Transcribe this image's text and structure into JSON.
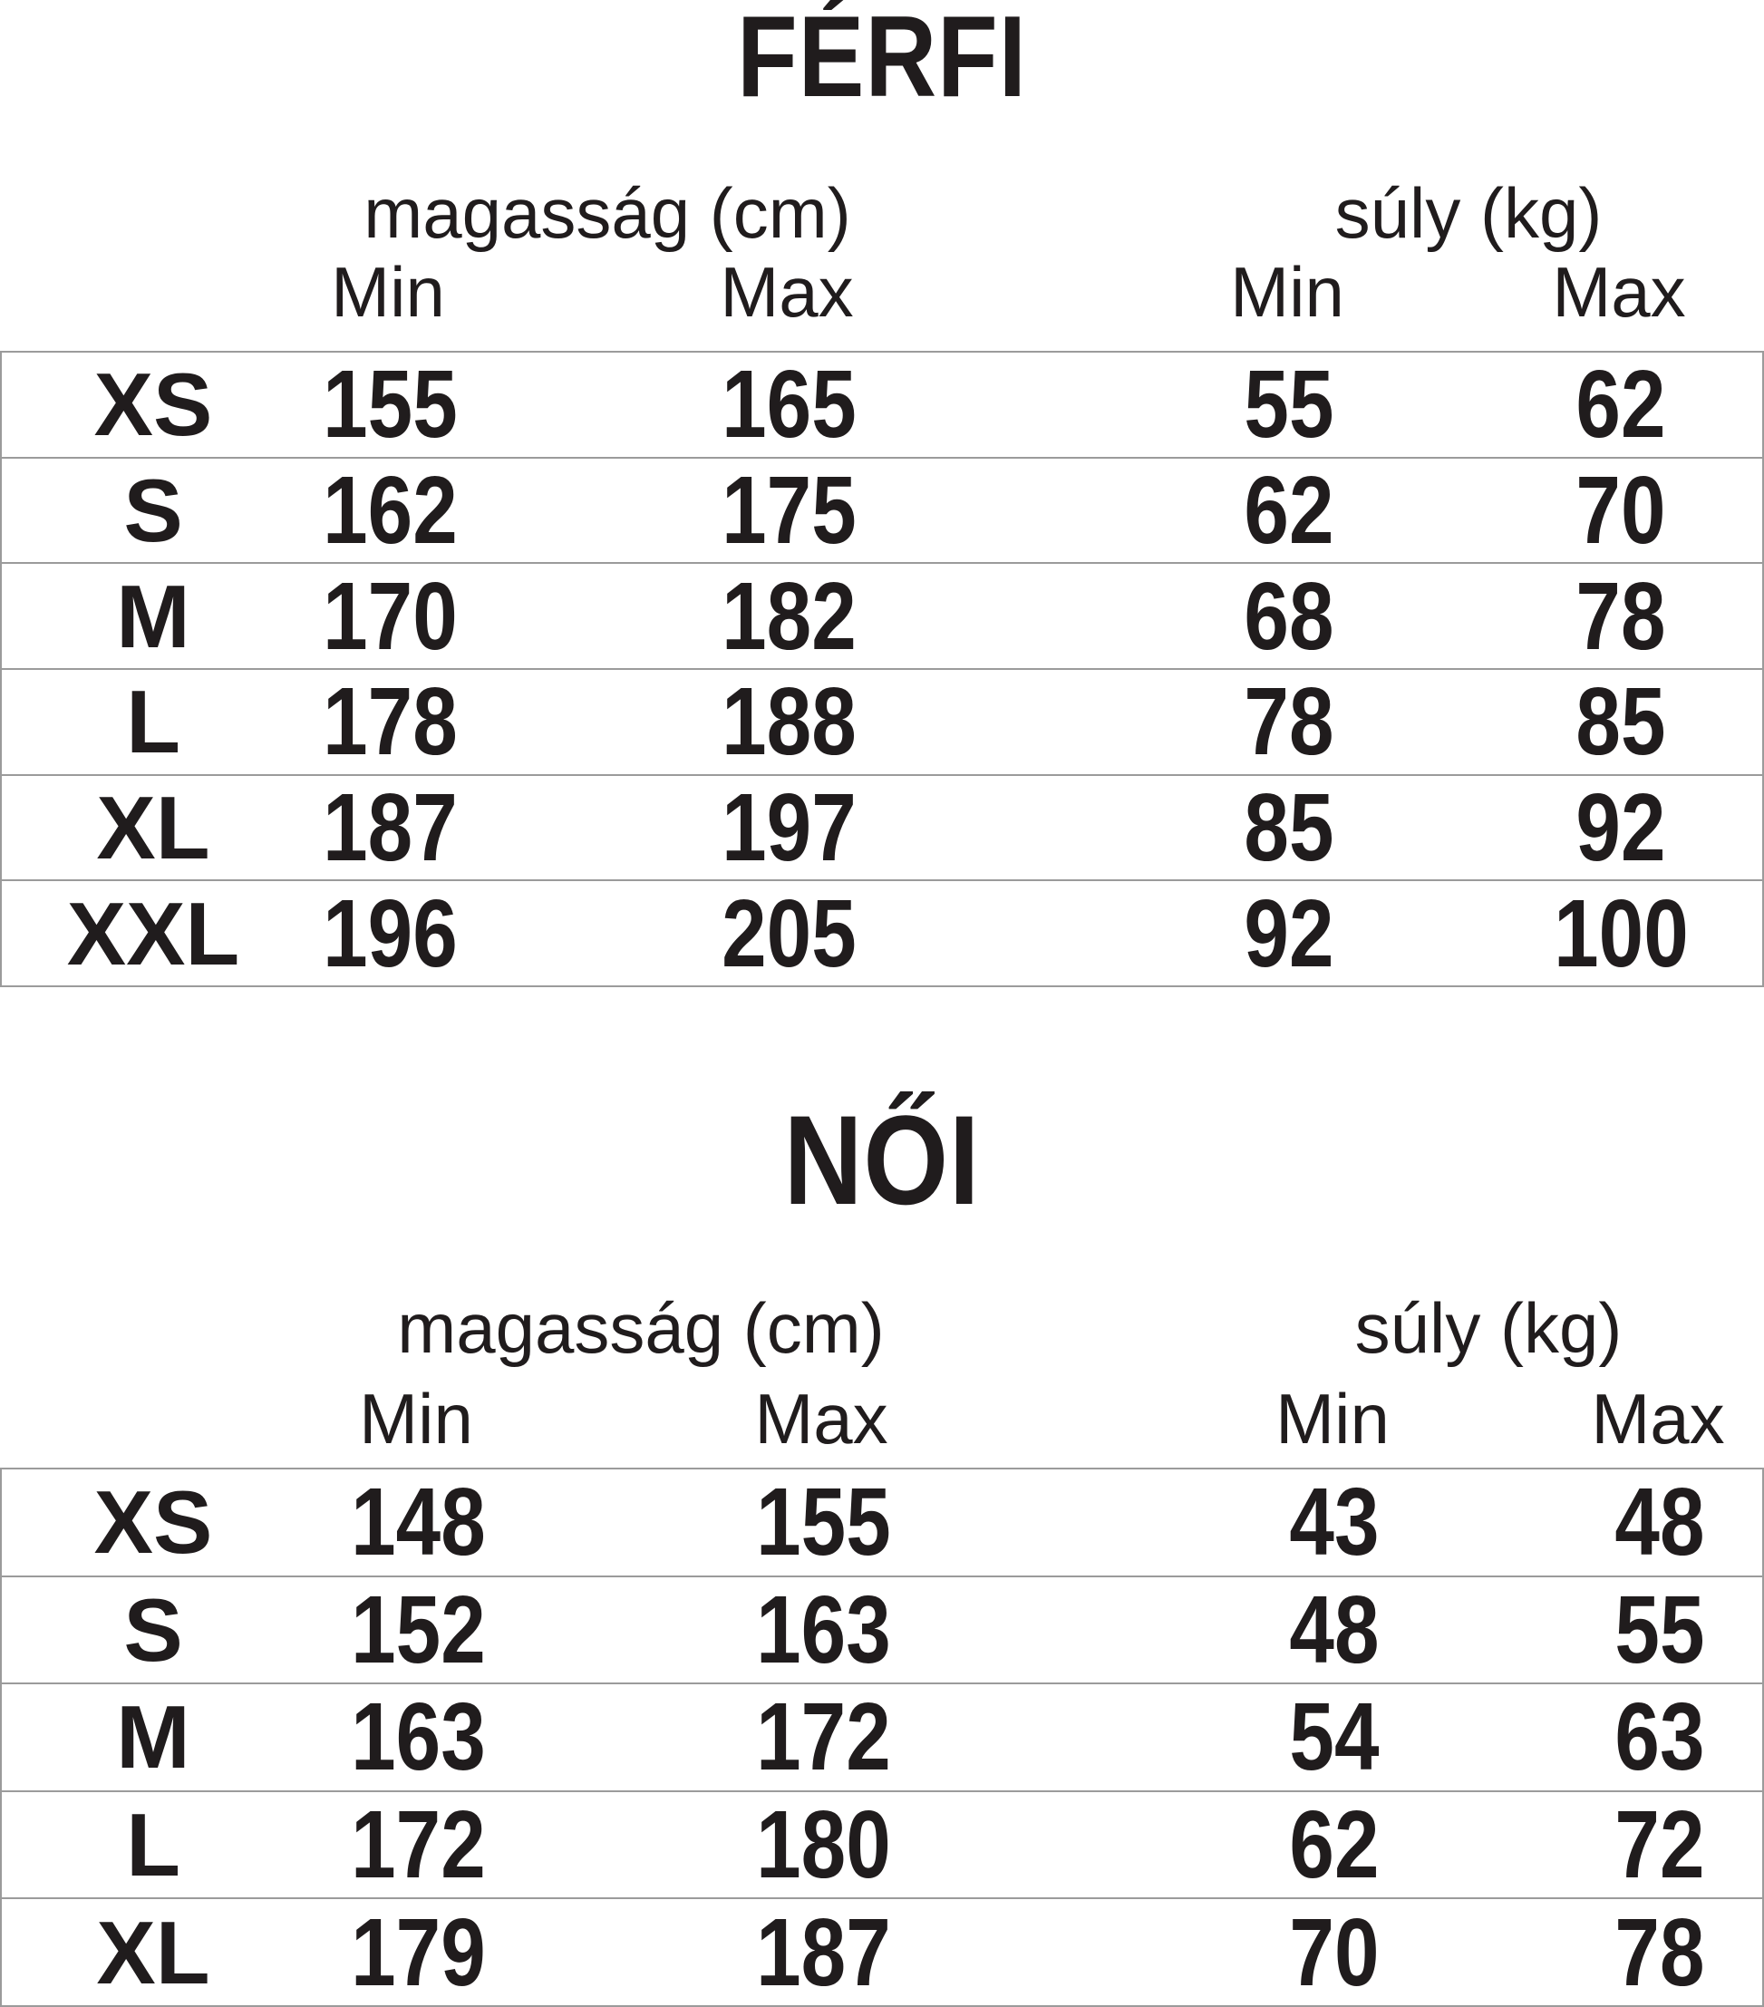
{
  "page": {
    "background_color": "#ffffff",
    "text_color": "#201c1d",
    "divider_color": "#9b9b9b"
  },
  "tables": [
    {
      "title": "FÉRFI",
      "height_group_label": "magasság (cm)",
      "weight_group_label": "súly (kg)",
      "min_label": "Min",
      "max_label": "Max",
      "rows": [
        {
          "size": "XS",
          "height_min": "155",
          "height_max": "165",
          "weight_min": "55",
          "weight_max": "62"
        },
        {
          "size": "S",
          "height_min": "162",
          "height_max": "175",
          "weight_min": "62",
          "weight_max": "70"
        },
        {
          "size": "M",
          "height_min": "170",
          "height_max": "182",
          "weight_min": "68",
          "weight_max": "78"
        },
        {
          "size": "L",
          "height_min": "178",
          "height_max": "188",
          "weight_min": "78",
          "weight_max": "85"
        },
        {
          "size": "XL",
          "height_min": "187",
          "height_max": "197",
          "weight_min": "85",
          "weight_max": "92"
        },
        {
          "size": "XXL",
          "height_min": "196",
          "height_max": "205",
          "weight_min": "92",
          "weight_max": "100"
        }
      ]
    },
    {
      "title": "NŐI",
      "height_group_label": "magasság (cm)",
      "weight_group_label": "súly (kg)",
      "min_label": "Min",
      "max_label": "Max",
      "rows": [
        {
          "size": "XS",
          "height_min": "148",
          "height_max": "155",
          "weight_min": "43",
          "weight_max": "48"
        },
        {
          "size": "S",
          "height_min": "152",
          "height_max": "163",
          "weight_min": "48",
          "weight_max": "55"
        },
        {
          "size": "M",
          "height_min": "163",
          "height_max": "172",
          "weight_min": "54",
          "weight_max": "63"
        },
        {
          "size": "L",
          "height_min": "172",
          "height_max": "180",
          "weight_min": "62",
          "weight_max": "72"
        },
        {
          "size": "XL",
          "height_min": "179",
          "height_max": "187",
          "weight_min": "70",
          "weight_max": "78"
        }
      ]
    }
  ]
}
